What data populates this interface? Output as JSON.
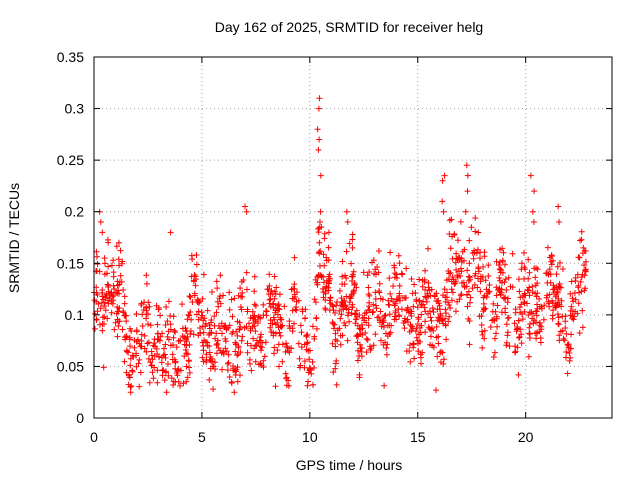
{
  "chart_data": {
    "type": "scatter",
    "title": "Day 162 of 2025, SRMTID for receiver helg",
    "xlabel": "GPS time / hours",
    "ylabel": "SRMTID / TECUs",
    "xlim": [
      0,
      24
    ],
    "ylim": [
      0,
      0.35
    ],
    "x_ticks": [
      0,
      5,
      10,
      15,
      20
    ],
    "x_tick_labels": [
      "0",
      "5",
      "10",
      "15",
      "20"
    ],
    "y_ticks": [
      0,
      0.05,
      0.1,
      0.15,
      0.2,
      0.25,
      0.3,
      0.35
    ],
    "y_tick_labels": [
      "0",
      "0.05",
      "0.1",
      "0.15",
      "0.2",
      "0.25",
      "0.3",
      "0.35"
    ],
    "grid": true,
    "marker": "plus",
    "series_color": "#ff0000",
    "points_description": "dense plus-marker cloud from 0 to ~22.8 h, mostly 0.05-0.15 TECU",
    "x_range_covered": [
      0,
      22.8
    ],
    "trend": [
      {
        "x": 0.0,
        "y": 0.09
      },
      {
        "x": 0.5,
        "y": 0.14
      },
      {
        "x": 1.0,
        "y": 0.12
      },
      {
        "x": 1.5,
        "y": 0.08
      },
      {
        "x": 2.0,
        "y": 0.07
      },
      {
        "x": 3.0,
        "y": 0.08
      },
      {
        "x": 3.5,
        "y": 0.06
      },
      {
        "x": 4.0,
        "y": 0.06
      },
      {
        "x": 4.5,
        "y": 0.1
      },
      {
        "x": 5.0,
        "y": 0.1
      },
      {
        "x": 6.0,
        "y": 0.08
      },
      {
        "x": 7.0,
        "y": 0.09
      },
      {
        "x": 8.0,
        "y": 0.09
      },
      {
        "x": 9.0,
        "y": 0.09
      },
      {
        "x": 10.0,
        "y": 0.07
      },
      {
        "x": 10.5,
        "y": 0.15
      },
      {
        "x": 11.0,
        "y": 0.1
      },
      {
        "x": 12.0,
        "y": 0.1
      },
      {
        "x": 13.0,
        "y": 0.1
      },
      {
        "x": 14.0,
        "y": 0.12
      },
      {
        "x": 15.0,
        "y": 0.1
      },
      {
        "x": 16.0,
        "y": 0.09
      },
      {
        "x": 17.0,
        "y": 0.15
      },
      {
        "x": 18.0,
        "y": 0.13
      },
      {
        "x": 19.0,
        "y": 0.11
      },
      {
        "x": 20.0,
        "y": 0.1
      },
      {
        "x": 21.0,
        "y": 0.12
      },
      {
        "x": 22.0,
        "y": 0.09
      },
      {
        "x": 22.8,
        "y": 0.13
      }
    ],
    "spikes": [
      {
        "x": 10.45,
        "values": [
          0.31,
          0.3,
          0.28,
          0.27,
          0.26,
          0.235,
          0.2,
          0.19
        ]
      },
      {
        "x": 17.3,
        "values": [
          0.245,
          0.235,
          0.22,
          0.2
        ]
      },
      {
        "x": 20.3,
        "values": [
          0.235,
          0.22,
          0.2,
          0.19
        ]
      },
      {
        "x": 16.2,
        "values": [
          0.235,
          0.23,
          0.21,
          0.2
        ]
      },
      {
        "x": 0.3,
        "values": [
          0.2,
          0.19,
          0.18
        ]
      },
      {
        "x": 7.0,
        "values": [
          0.205,
          0.2
        ]
      },
      {
        "x": 3.5,
        "values": [
          0.18
        ]
      },
      {
        "x": 11.7,
        "values": [
          0.2,
          0.19
        ]
      },
      {
        "x": 21.5,
        "values": [
          0.205,
          0.19
        ]
      }
    ],
    "lows": [
      {
        "x": 1.7,
        "values": [
          0.025,
          0.03
        ]
      },
      {
        "x": 3.4,
        "values": [
          0.025
        ]
      },
      {
        "x": 6.5,
        "values": [
          0.025
        ]
      },
      {
        "x": 15.8,
        "values": [
          0.027
        ]
      },
      {
        "x": 5.5,
        "values": [
          0.028
        ]
      }
    ]
  }
}
